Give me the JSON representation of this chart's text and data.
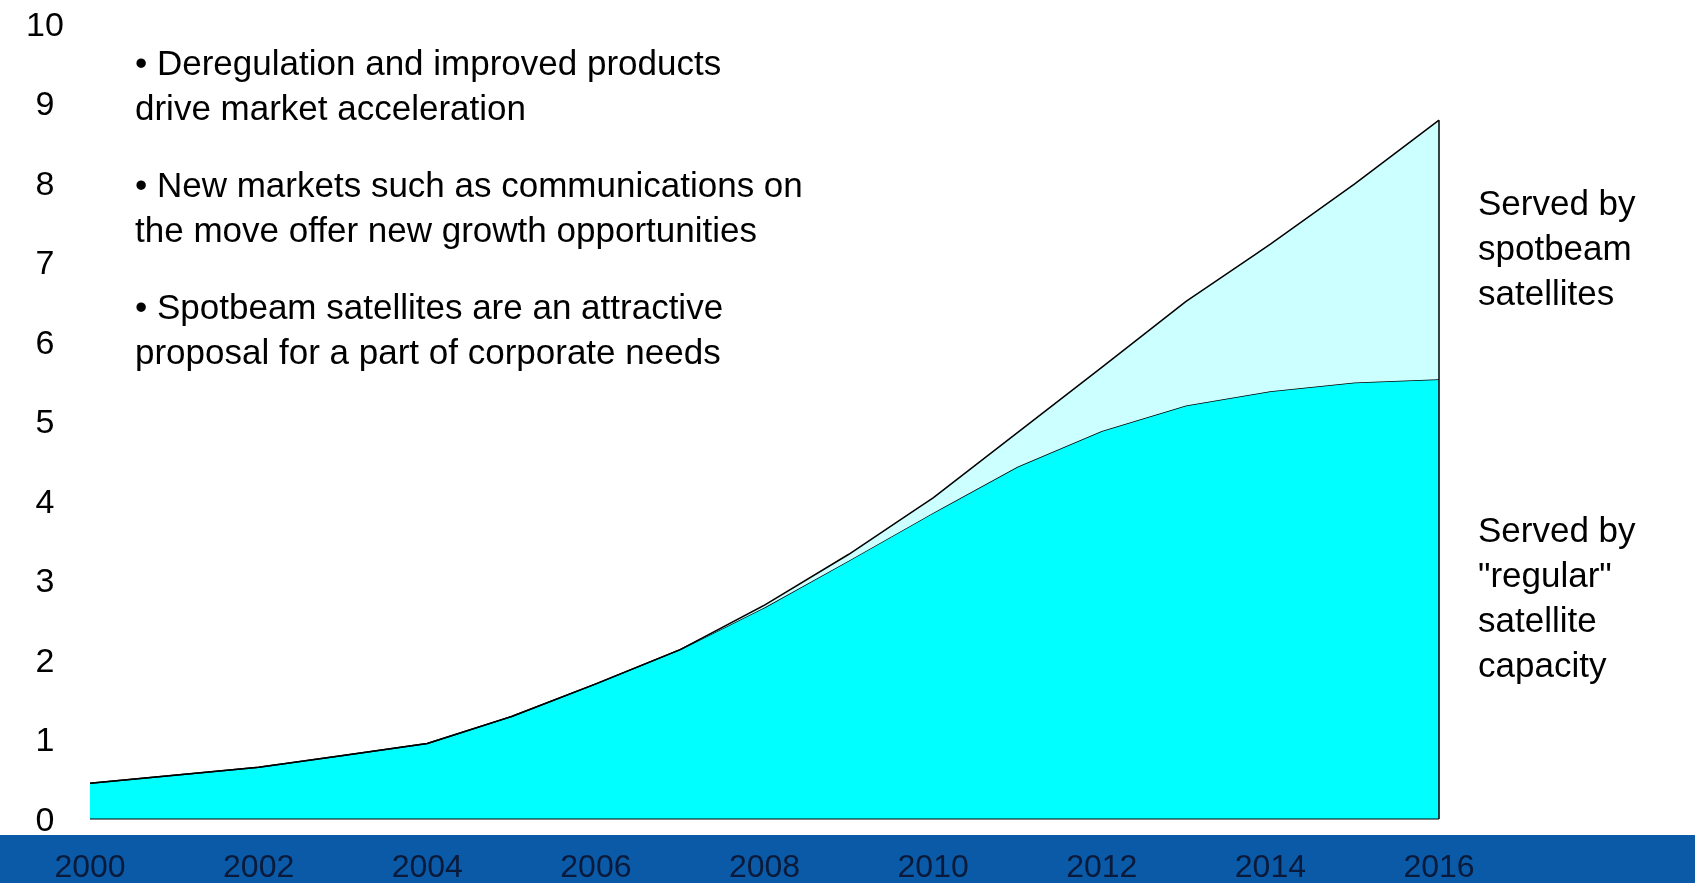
{
  "chart_data": {
    "type": "area",
    "stacked": true,
    "x": [
      2000,
      2001,
      2002,
      2003,
      2004,
      2005,
      2006,
      2007,
      2008,
      2009,
      2010,
      2011,
      2012,
      2013,
      2014,
      2015,
      2016
    ],
    "series": [
      {
        "name": "Served by\n\"regular\"\nsatellite\ncapacity",
        "color": "#00ffff",
        "values": [
          0.45,
          0.55,
          0.65,
          0.8,
          0.95,
          1.29,
          1.7,
          2.13,
          2.66,
          3.25,
          3.85,
          4.43,
          4.88,
          5.2,
          5.38,
          5.49,
          5.53
        ]
      },
      {
        "name": "Served by\nspotbeam\nsatellites",
        "color": "#ccffff",
        "values": [
          0,
          0,
          0,
          0,
          0,
          0,
          0,
          0,
          0.03,
          0.08,
          0.19,
          0.43,
          0.8,
          1.31,
          1.85,
          2.5,
          3.26
        ]
      }
    ],
    "xlim": [
      2000,
      2016
    ],
    "xticks": [
      2000,
      2002,
      2004,
      2006,
      2008,
      2010,
      2012,
      2014,
      2016
    ],
    "ylim": [
      0,
      10
    ],
    "yticks": [
      0,
      1,
      2,
      3,
      4,
      5,
      6,
      7,
      8,
      9,
      10
    ],
    "annotations": [
      "• Deregulation and improved products\ndrive market acceleration",
      "• New markets such as communications on\nthe move offer new growth opportunities",
      "• Spotbeam satellites are an attractive\nproposal for a part of corporate needs"
    ]
  }
}
